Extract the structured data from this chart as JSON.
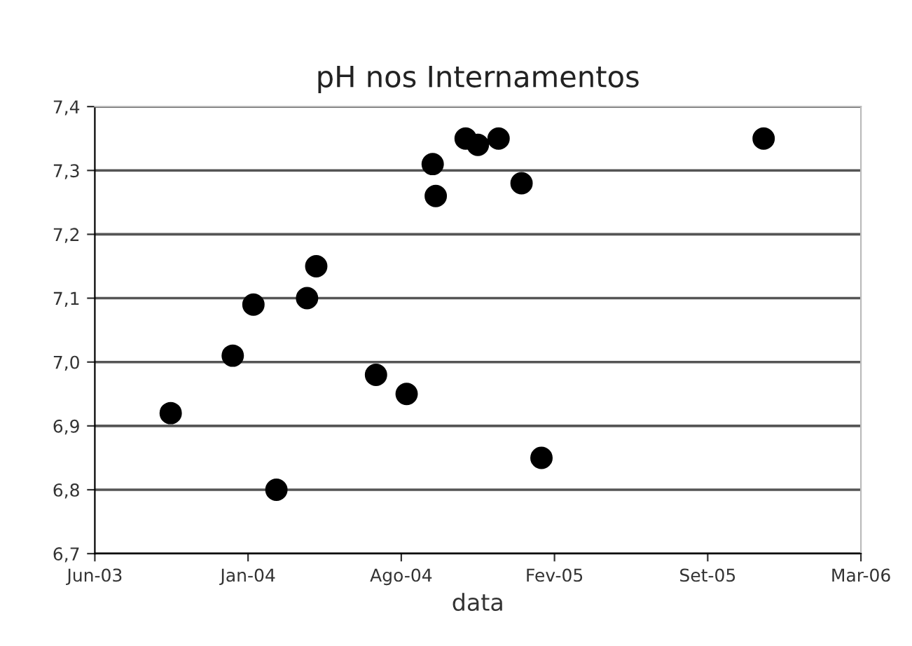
{
  "chart_data": {
    "type": "scatter",
    "title": "pH nos Internamentos",
    "xlabel": "data",
    "x": [
      "2003-10-07",
      "2003-12-27",
      "2004-01-23",
      "2004-02-22",
      "2004-04-02",
      "2004-04-14",
      "2004-07-01",
      "2004-08-10",
      "2004-09-13",
      "2004-09-17",
      "2004-10-26",
      "2004-11-11",
      "2004-12-08",
      "2005-01-07",
      "2005-02-02",
      "2005-11-19"
    ],
    "series": [
      {
        "color": "#000000",
        "values": [
          6.92,
          7.01,
          7.09,
          6.8,
          7.1,
          7.15,
          6.98,
          6.95,
          7.31,
          7.26,
          7.35,
          7.34,
          7.35,
          7.28,
          6.85,
          7.35
        ]
      }
    ],
    "xlim": [
      "2003-06-30",
      "2006-03-26"
    ],
    "xticks": [
      {
        "value": "2003-06-30",
        "label": "Jun-03"
      },
      {
        "value": "2004-01-16",
        "label": "Jan-04"
      },
      {
        "value": "2004-08-03",
        "label": "Ago-04"
      },
      {
        "value": "2005-02-19",
        "label": "Fev-05"
      },
      {
        "value": "2005-09-07",
        "label": "Set-05"
      },
      {
        "value": "2006-03-26",
        "label": "Mar-06"
      }
    ],
    "ylim": [
      6.7,
      7.4
    ],
    "yticks": [
      {
        "value": 6.7,
        "label": "6,7"
      },
      {
        "value": 6.8,
        "label": "6,8"
      },
      {
        "value": 6.9,
        "label": "6,9"
      },
      {
        "value": 7.0,
        "label": "7,0"
      },
      {
        "value": 7.1,
        "label": "7,1"
      },
      {
        "value": 7.2,
        "label": "7,2"
      },
      {
        "value": 7.3,
        "label": "7,3"
      },
      {
        "value": 7.4,
        "label": "7,4"
      }
    ],
    "grid": "y",
    "marker": "circle"
  }
}
